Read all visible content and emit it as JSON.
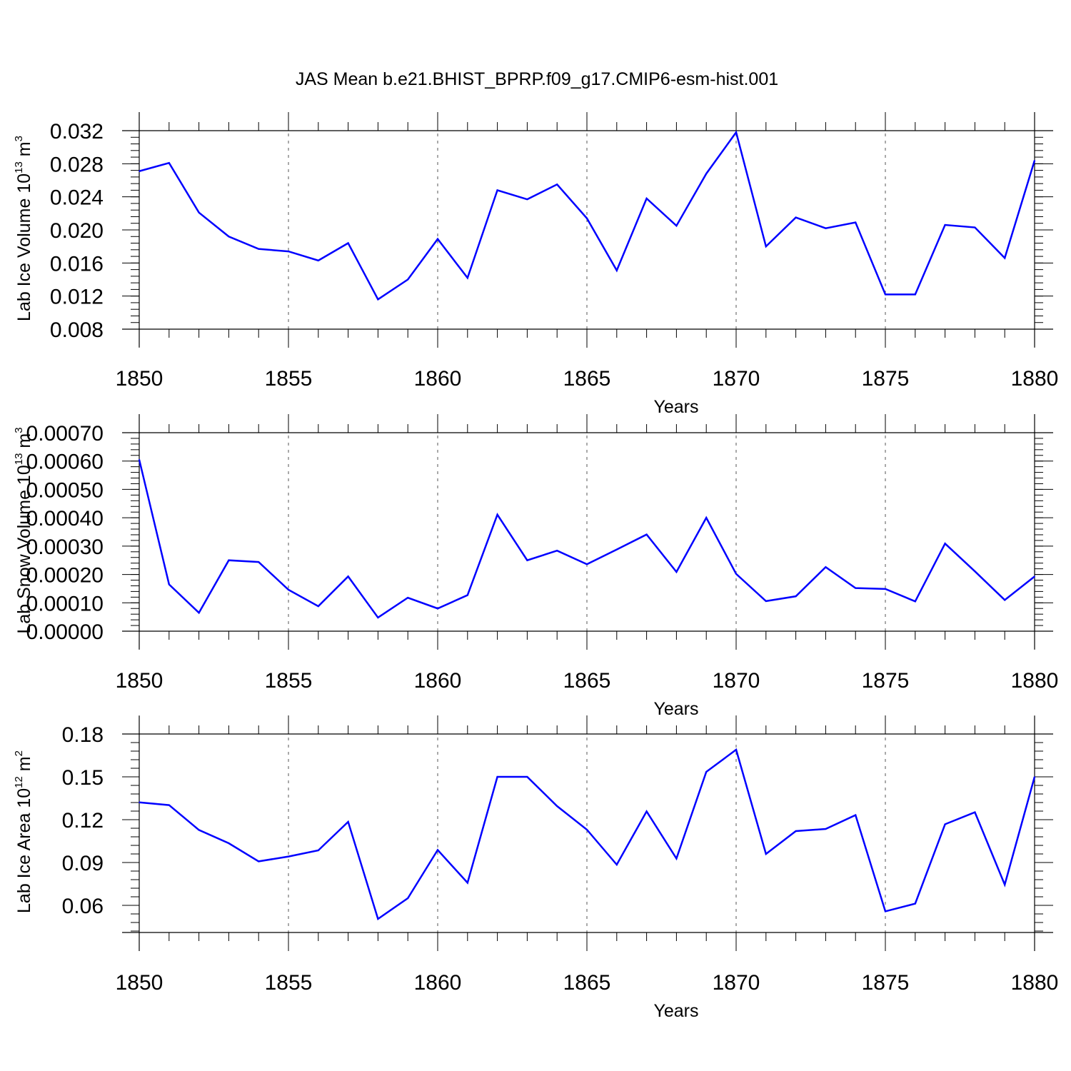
{
  "title": "JAS Mean b.e21.BHIST_BPRP.f09_g17.CMIP6-esm-hist.001",
  "colors": {
    "line": "#0000ff",
    "axis": "#000000",
    "grid": "#555555"
  },
  "chart_data": [
    {
      "type": "line",
      "id": "ice-volume",
      "ylabel_main": "Lab Ice Volume 10",
      "ylabel_exp": "13",
      "ylabel_unit": " m",
      "ylabel_unit_exp": "3",
      "xlabel": "Years",
      "xlim": [
        1850,
        1880
      ],
      "ylim": [
        0.008,
        0.032
      ],
      "xticks": [
        "1850",
        "1855",
        "1860",
        "1865",
        "1870",
        "1875",
        "1880"
      ],
      "yticks": [
        "0.008",
        "0.012",
        "0.016",
        "0.020",
        "0.024",
        "0.028",
        "0.032"
      ],
      "ytick_values": [
        0.008,
        0.012,
        0.016,
        0.02,
        0.024,
        0.028,
        0.032
      ],
      "series": [
        {
          "name": "Lab Ice Volume",
          "x": [
            1850,
            1851,
            1852,
            1853,
            1854,
            1855,
            1856,
            1857,
            1858,
            1859,
            1860,
            1861,
            1862,
            1863,
            1864,
            1865,
            1866,
            1867,
            1868,
            1869,
            1870,
            1871,
            1872,
            1873,
            1874,
            1875,
            1876,
            1877,
            1878,
            1879,
            1880
          ],
          "values": [
            0.0271,
            0.0281,
            0.0221,
            0.0192,
            0.0177,
            0.0174,
            0.0163,
            0.0184,
            0.0116,
            0.014,
            0.0189,
            0.0142,
            0.0248,
            0.0237,
            0.0255,
            0.0214,
            0.0151,
            0.0238,
            0.0205,
            0.0268,
            0.0318,
            0.018,
            0.0215,
            0.0202,
            0.0209,
            0.0122,
            0.0122,
            0.0206,
            0.0203,
            0.0166,
            0.0284
          ]
        }
      ]
    },
    {
      "type": "line",
      "id": "snow-volume",
      "ylabel_main": "Lab Snow Volume 10",
      "ylabel_exp": "13",
      "ylabel_unit": " m",
      "ylabel_unit_exp": "3",
      "xlabel": "Years",
      "xlim": [
        1850,
        1880
      ],
      "ylim": [
        0.0,
        0.0007
      ],
      "xticks": [
        "1850",
        "1855",
        "1860",
        "1865",
        "1870",
        "1875",
        "1880"
      ],
      "yticks": [
        "0.00000",
        "0.00010",
        "0.00020",
        "0.00030",
        "0.00040",
        "0.00050",
        "0.00060",
        "0.00070"
      ],
      "ytick_values": [
        0.0,
        0.0001,
        0.0002,
        0.0003,
        0.0004,
        0.0005,
        0.0006,
        0.0007
      ],
      "series": [
        {
          "name": "Lab Snow Volume",
          "x": [
            1850,
            1851,
            1852,
            1853,
            1854,
            1855,
            1856,
            1857,
            1858,
            1859,
            1860,
            1861,
            1862,
            1863,
            1864,
            1865,
            1866,
            1867,
            1868,
            1869,
            1870,
            1871,
            1872,
            1873,
            1874,
            1875,
            1876,
            1877,
            1878,
            1879,
            1880
          ],
          "values": [
            0.000605,
            0.000165,
            6.5e-05,
            0.00025,
            0.000244,
            0.000146,
            8.8e-05,
            0.000193,
            4.8e-05,
            0.000118,
            8e-05,
            0.000127,
            0.000411,
            0.00025,
            0.000284,
            0.000236,
            0.000288,
            0.000341,
            0.000209,
            0.0004,
            0.000202,
            0.000106,
            0.000123,
            0.000226,
            0.000152,
            0.000149,
            0.000105,
            0.000309,
            0.000211,
            0.00011,
            0.000193
          ]
        }
      ]
    },
    {
      "type": "line",
      "id": "ice-area",
      "ylabel_main": "Lab Ice Area 10",
      "ylabel_exp": "12",
      "ylabel_unit": " m",
      "ylabel_unit_exp": "2",
      "xlabel": "Years",
      "xlim": [
        1850,
        1880
      ],
      "ylim": [
        0.041,
        0.18
      ],
      "xticks": [
        "1850",
        "1855",
        "1860",
        "1865",
        "1870",
        "1875",
        "1880"
      ],
      "yticks": [
        "0.06",
        "0.09",
        "0.12",
        "0.15",
        "0.18"
      ],
      "ytick_values": [
        0.06,
        0.09,
        0.12,
        0.15,
        0.18
      ],
      "series": [
        {
          "name": "Lab Ice Area",
          "x": [
            1850,
            1851,
            1852,
            1853,
            1854,
            1855,
            1856,
            1857,
            1858,
            1859,
            1860,
            1861,
            1862,
            1863,
            1864,
            1865,
            1866,
            1867,
            1868,
            1869,
            1870,
            1871,
            1872,
            1873,
            1874,
            1875,
            1876,
            1877,
            1878,
            1879,
            1880
          ],
          "values": [
            0.1321,
            0.1302,
            0.1128,
            0.1035,
            0.0908,
            0.0942,
            0.0985,
            0.1185,
            0.0505,
            0.065,
            0.0988,
            0.0758,
            0.15,
            0.15,
            0.1295,
            0.113,
            0.0885,
            0.1258,
            0.0928,
            0.1535,
            0.169,
            0.096,
            0.112,
            0.1135,
            0.1232,
            0.0558,
            0.0612,
            0.1168,
            0.1252,
            0.0745,
            0.15
          ]
        }
      ]
    }
  ]
}
